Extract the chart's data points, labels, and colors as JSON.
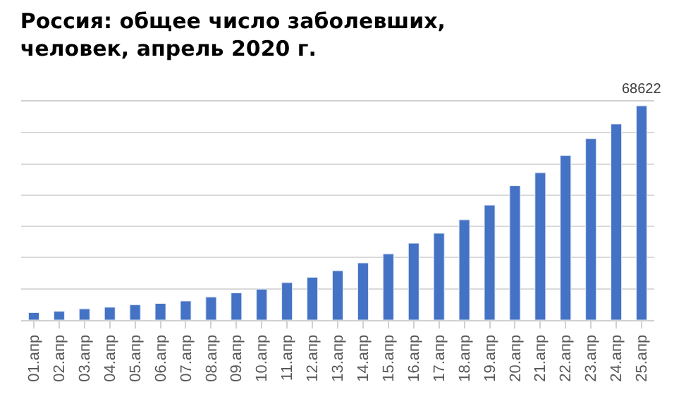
{
  "chart_data": {
    "type": "bar",
    "title": "Россия: общее число заболевших,\nчеловек, апрель 2020 г.",
    "categories": [
      "01.апр",
      "02.апр",
      "03.апр",
      "04.апр",
      "05.апр",
      "06.апр",
      "07.апр",
      "08.апр",
      "09.апр",
      "10.апр",
      "11.апр",
      "12.апр",
      "13.апр",
      "14.апр",
      "15.апр",
      "16.апр",
      "17.апр",
      "18.апр",
      "19.апр",
      "20.апр",
      "21.апр",
      "22.апр",
      "23.апр",
      "24.апр",
      "25.апр"
    ],
    "values": [
      2400,
      2800,
      3600,
      4100,
      4900,
      5300,
      6100,
      7400,
      8700,
      9900,
      12000,
      13700,
      15800,
      18300,
      21200,
      24600,
      27800,
      32100,
      36800,
      43000,
      47200,
      52700,
      58100,
      62800,
      68622
    ],
    "value_labels": [
      null,
      null,
      null,
      null,
      null,
      null,
      null,
      null,
      null,
      null,
      null,
      null,
      null,
      null,
      null,
      null,
      null,
      null,
      null,
      null,
      null,
      null,
      null,
      null,
      "68622"
    ],
    "color": "#4472c4",
    "ylim": [
      0,
      70000
    ],
    "yticks": [
      {
        "value": 0,
        "label": null
      },
      {
        "value": 10000,
        "label": null
      },
      {
        "value": 20000,
        "label": null
      },
      {
        "value": 30000,
        "label": null
      },
      {
        "value": 40000,
        "label": null
      },
      {
        "value": 50000,
        "label": null
      },
      {
        "value": 60000,
        "label": null
      },
      {
        "value": 70000,
        "label": null
      }
    ],
    "grid": "y",
    "tick_labels": "x"
  }
}
